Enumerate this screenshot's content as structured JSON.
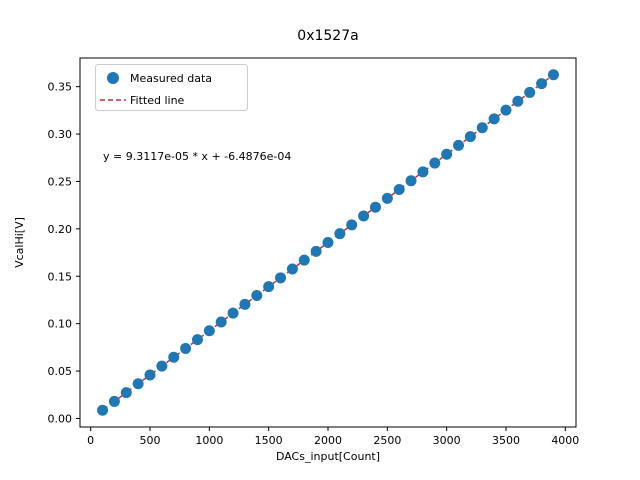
{
  "figure": {
    "title": "0x1527a",
    "annotation": "y = 9.3117e-05 * x + -6.4876e-04",
    "colors": {
      "background": "#ffffff",
      "marker": "#1f77b4",
      "fit_line": "#d62728",
      "axis": "#000000",
      "legend_border": "#cccccc"
    }
  },
  "chart_data": {
    "type": "scatter",
    "title": "0x1527a",
    "xlabel": "DACs_input[Count]",
    "ylabel": "VcalHi[V]",
    "grid": false,
    "xlim": [
      -90,
      4090
    ],
    "ylim": [
      -0.009,
      0.3802
    ],
    "xticks": [
      0,
      500,
      1000,
      1500,
      2000,
      2500,
      3000,
      3500,
      4000
    ],
    "yticks": [
      0.0,
      0.05,
      0.1,
      0.15,
      0.2,
      0.25,
      0.3,
      0.35
    ],
    "x": [
      100,
      200,
      300,
      400,
      500,
      600,
      700,
      800,
      900,
      1000,
      1100,
      1200,
      1300,
      1400,
      1500,
      1600,
      1700,
      1800,
      1900,
      2000,
      2100,
      2200,
      2300,
      2400,
      2500,
      2600,
      2700,
      2800,
      2900,
      3000,
      3100,
      3200,
      3300,
      3400,
      3500,
      3600,
      3700,
      3800,
      3900
    ],
    "series": [
      {
        "name": "Measured data",
        "type": "scatter",
        "values": [
          0.00866,
          0.01797,
          0.02729,
          0.0366,
          0.04591,
          0.05522,
          0.06453,
          0.07384,
          0.08316,
          0.09247,
          0.10178,
          0.11109,
          0.1204,
          0.12972,
          0.13903,
          0.14834,
          0.15765,
          0.16696,
          0.17627,
          0.18559,
          0.1949,
          0.20421,
          0.21352,
          0.22283,
          0.23214,
          0.24146,
          0.25077,
          0.26008,
          0.26939,
          0.2787,
          0.28801,
          0.29733,
          0.30664,
          0.31595,
          0.32526,
          0.33457,
          0.34388,
          0.3532,
          0.36251
        ]
      },
      {
        "name": "Fitted line",
        "type": "line",
        "style": "dashed"
      }
    ],
    "fit": {
      "slope": 9.3117e-05,
      "intercept": -0.00064876,
      "equation": "y = 9.3117e-05 * x + -6.4876e-04"
    },
    "legend": {
      "position": "upper left",
      "entries": [
        "Measured data",
        "Fitted line"
      ]
    }
  }
}
